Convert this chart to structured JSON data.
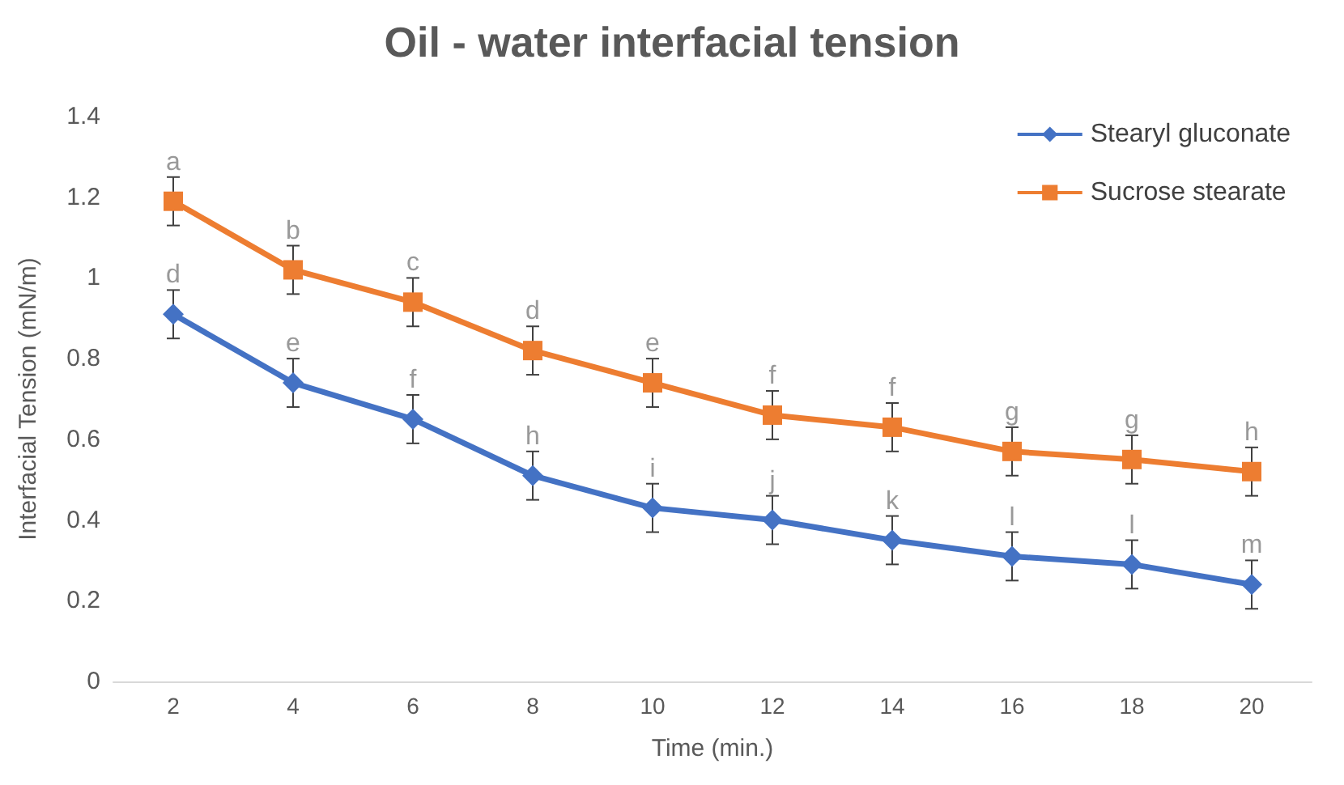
{
  "chart_data": {
    "type": "line",
    "title": "Oil - water interfacial tension",
    "xlabel": "Time (min.)",
    "ylabel": "Interfacial Tension (mN/m)",
    "categories": [
      "2",
      "4",
      "6",
      "8",
      "10",
      "12",
      "14",
      "16",
      "18",
      "20"
    ],
    "series": [
      {
        "name": "Stearyl gluconate",
        "color": "#4472c4",
        "marker": "diamond",
        "values": [
          0.91,
          0.74,
          0.65,
          0.51,
          0.43,
          0.4,
          0.35,
          0.31,
          0.29,
          0.24
        ],
        "errors": [
          0.06,
          0.06,
          0.06,
          0.06,
          0.06,
          0.06,
          0.06,
          0.06,
          0.06,
          0.06
        ]
      },
      {
        "name": "Sucrose stearate",
        "color": "#ed7d31",
        "marker": "square",
        "values": [
          1.19,
          1.02,
          0.94,
          0.82,
          0.74,
          0.66,
          0.63,
          0.57,
          0.55,
          0.52
        ],
        "errors": [
          0.06,
          0.06,
          0.06,
          0.06,
          0.06,
          0.06,
          0.06,
          0.06,
          0.06,
          0.06
        ]
      }
    ],
    "ylim": [
      0,
      1.4
    ],
    "yticks": [
      0,
      0.2,
      0.4,
      0.6,
      0.8,
      1,
      1.2,
      1.4
    ],
    "legend": "top right",
    "line_style": "solid",
    "annotations": [
      {
        "text": "d",
        "x": "2",
        "y": 0.91
      },
      {
        "text": "e",
        "x": "4",
        "y": 0.74
      },
      {
        "text": "f",
        "x": "6",
        "y": 0.65
      },
      {
        "text": "h",
        "x": "8",
        "y": 0.51
      },
      {
        "text": "i",
        "x": "10",
        "y": 0.43
      },
      {
        "text": "j",
        "x": "12",
        "y": 0.4
      },
      {
        "text": "k",
        "x": "14",
        "y": 0.35
      },
      {
        "text": "l",
        "x": "16",
        "y": 0.31
      },
      {
        "text": "l",
        "x": "18",
        "y": 0.29
      },
      {
        "text": "m",
        "x": "20",
        "y": 0.24
      },
      {
        "text": "a",
        "x": "2",
        "y": 1.19
      },
      {
        "text": "b",
        "x": "4",
        "y": 1.02
      },
      {
        "text": "c",
        "x": "6",
        "y": 0.94
      },
      {
        "text": "d",
        "x": "8",
        "y": 0.82
      },
      {
        "text": "e",
        "x": "10",
        "y": 0.74
      },
      {
        "text": "f",
        "x": "12",
        "y": 0.66
      },
      {
        "text": "f",
        "x": "14",
        "y": 0.63
      },
      {
        "text": "g",
        "x": "16",
        "y": 0.57
      },
      {
        "text": "g",
        "x": "18",
        "y": 0.55
      },
      {
        "text": "h",
        "x": "20",
        "y": 0.52
      }
    ]
  }
}
